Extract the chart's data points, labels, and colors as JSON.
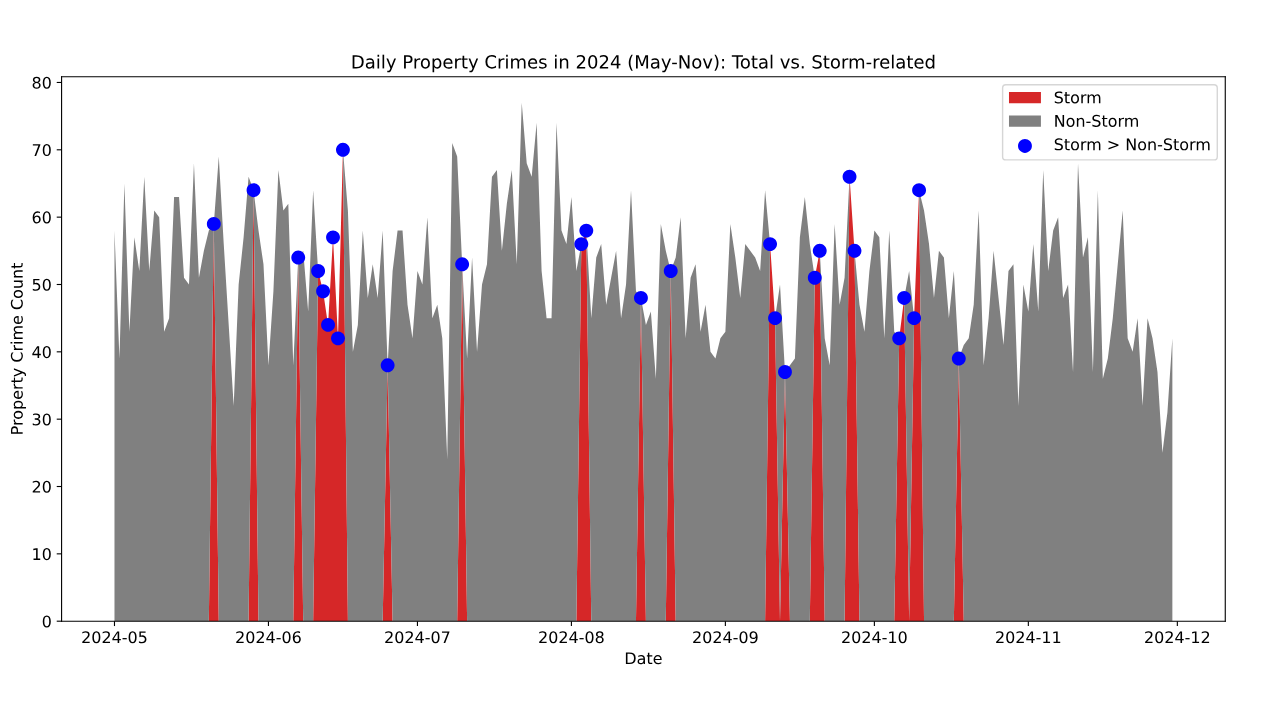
{
  "chart_data": {
    "type": "area",
    "title": "Daily Property Crimes in 2024 (May-Nov): Total vs. Storm-related",
    "xlabel": "Date",
    "ylabel": "Property Crime Count",
    "stacked": true,
    "legend": "top right",
    "grid": false,
    "xlim": [
      "2024-04-20T08:24",
      "2024-12-10T15:36"
    ],
    "xticks": [
      {
        "value": "2024-05-01",
        "label": "2024-05"
      },
      {
        "value": "2024-06-01",
        "label": "2024-06"
      },
      {
        "value": "2024-07-01",
        "label": "2024-07"
      },
      {
        "value": "2024-08-01",
        "label": "2024-08"
      },
      {
        "value": "2024-09-01",
        "label": "2024-09"
      },
      {
        "value": "2024-10-01",
        "label": "2024-10"
      },
      {
        "value": "2024-11-01",
        "label": "2024-11"
      },
      {
        "value": "2024-12-01",
        "label": "2024-12"
      }
    ],
    "ylim": [
      0,
      80.85
    ],
    "yticks": [
      0,
      10,
      20,
      30,
      40,
      50,
      60,
      70,
      80
    ],
    "x": [
      "2024-05-01",
      "2024-05-02",
      "2024-05-03",
      "2024-05-04",
      "2024-05-05",
      "2024-05-06",
      "2024-05-07",
      "2024-05-08",
      "2024-05-09",
      "2024-05-10",
      "2024-05-11",
      "2024-05-12",
      "2024-05-13",
      "2024-05-14",
      "2024-05-15",
      "2024-05-16",
      "2024-05-17",
      "2024-05-18",
      "2024-05-19",
      "2024-05-20",
      "2024-05-21",
      "2024-05-22",
      "2024-05-23",
      "2024-05-24",
      "2024-05-25",
      "2024-05-26",
      "2024-05-27",
      "2024-05-28",
      "2024-05-29",
      "2024-05-30",
      "2024-05-31",
      "2024-06-01",
      "2024-06-02",
      "2024-06-03",
      "2024-06-04",
      "2024-06-05",
      "2024-06-06",
      "2024-06-07",
      "2024-06-08",
      "2024-06-09",
      "2024-06-10",
      "2024-06-11",
      "2024-06-12",
      "2024-06-13",
      "2024-06-14",
      "2024-06-15",
      "2024-06-16",
      "2024-06-17",
      "2024-06-18",
      "2024-06-19",
      "2024-06-20",
      "2024-06-21",
      "2024-06-22",
      "2024-06-23",
      "2024-06-24",
      "2024-06-25",
      "2024-06-26",
      "2024-06-27",
      "2024-06-28",
      "2024-06-29",
      "2024-06-30",
      "2024-07-01",
      "2024-07-02",
      "2024-07-03",
      "2024-07-04",
      "2024-07-05",
      "2024-07-06",
      "2024-07-07",
      "2024-07-08",
      "2024-07-09",
      "2024-07-10",
      "2024-07-11",
      "2024-07-12",
      "2024-07-13",
      "2024-07-14",
      "2024-07-15",
      "2024-07-16",
      "2024-07-17",
      "2024-07-18",
      "2024-07-19",
      "2024-07-20",
      "2024-07-21",
      "2024-07-22",
      "2024-07-23",
      "2024-07-24",
      "2024-07-25",
      "2024-07-26",
      "2024-07-27",
      "2024-07-28",
      "2024-07-29",
      "2024-07-30",
      "2024-07-31",
      "2024-08-01",
      "2024-08-02",
      "2024-08-03",
      "2024-08-04",
      "2024-08-05",
      "2024-08-06",
      "2024-08-07",
      "2024-08-08",
      "2024-08-09",
      "2024-08-10",
      "2024-08-11",
      "2024-08-12",
      "2024-08-13",
      "2024-08-14",
      "2024-08-15",
      "2024-08-16",
      "2024-08-17",
      "2024-08-18",
      "2024-08-19",
      "2024-08-20",
      "2024-08-21",
      "2024-08-22",
      "2024-08-23",
      "2024-08-24",
      "2024-08-25",
      "2024-08-26",
      "2024-08-27",
      "2024-08-28",
      "2024-08-29",
      "2024-08-30",
      "2024-08-31",
      "2024-09-01",
      "2024-09-02",
      "2024-09-03",
      "2024-09-04",
      "2024-09-05",
      "2024-09-06",
      "2024-09-07",
      "2024-09-08",
      "2024-09-09",
      "2024-09-10",
      "2024-09-11",
      "2024-09-12",
      "2024-09-13",
      "2024-09-14",
      "2024-09-15",
      "2024-09-16",
      "2024-09-17",
      "2024-09-18",
      "2024-09-19",
      "2024-09-20",
      "2024-09-21",
      "2024-09-22",
      "2024-09-23",
      "2024-09-24",
      "2024-09-25",
      "2024-09-26",
      "2024-09-27",
      "2024-09-28",
      "2024-09-29",
      "2024-09-30",
      "2024-10-01",
      "2024-10-02",
      "2024-10-03",
      "2024-10-04",
      "2024-10-05",
      "2024-10-06",
      "2024-10-07",
      "2024-10-08",
      "2024-10-09",
      "2024-10-10",
      "2024-10-11",
      "2024-10-12",
      "2024-10-13",
      "2024-10-14",
      "2024-10-15",
      "2024-10-16",
      "2024-10-17",
      "2024-10-18",
      "2024-10-19",
      "2024-10-20",
      "2024-10-21",
      "2024-10-22",
      "2024-10-23",
      "2024-10-24",
      "2024-10-25",
      "2024-10-26",
      "2024-10-27",
      "2024-10-28",
      "2024-10-29",
      "2024-10-30",
      "2024-10-31",
      "2024-11-01",
      "2024-11-02",
      "2024-11-03",
      "2024-11-04",
      "2024-11-05",
      "2024-11-06",
      "2024-11-07",
      "2024-11-08",
      "2024-11-09",
      "2024-11-10",
      "2024-11-11",
      "2024-11-12",
      "2024-11-13",
      "2024-11-14",
      "2024-11-15",
      "2024-11-16",
      "2024-11-17",
      "2024-11-18",
      "2024-11-19",
      "2024-11-20",
      "2024-11-21",
      "2024-11-22",
      "2024-11-23",
      "2024-11-24",
      "2024-11-25",
      "2024-11-26",
      "2024-11-27",
      "2024-11-28",
      "2024-11-29",
      "2024-11-30"
    ],
    "series": [
      {
        "name": "Storm",
        "color": "#d62728",
        "values": [
          0,
          0,
          0,
          0,
          0,
          0,
          0,
          0,
          0,
          0,
          0,
          0,
          0,
          0,
          0,
          0,
          0,
          0,
          0,
          0,
          59,
          0,
          0,
          0,
          0,
          0,
          0,
          0,
          64,
          0,
          0,
          0,
          0,
          0,
          0,
          0,
          0,
          54,
          0,
          0,
          0,
          52,
          49,
          44,
          57,
          42,
          70,
          0,
          0,
          0,
          0,
          0,
          0,
          0,
          0,
          38,
          0,
          0,
          0,
          0,
          0,
          0,
          0,
          0,
          0,
          0,
          0,
          0,
          0,
          0,
          53,
          0,
          0,
          0,
          0,
          0,
          0,
          0,
          0,
          0,
          0,
          0,
          0,
          0,
          0,
          0,
          0,
          0,
          0,
          0,
          0,
          0,
          0,
          0,
          56,
          58,
          0,
          0,
          0,
          0,
          0,
          0,
          0,
          0,
          0,
          0,
          48,
          0,
          0,
          0,
          0,
          0,
          52,
          0,
          0,
          0,
          0,
          0,
          0,
          0,
          0,
          0,
          0,
          0,
          0,
          0,
          0,
          0,
          0,
          0,
          0,
          0,
          56,
          45,
          0,
          37,
          0,
          0,
          0,
          0,
          0,
          51,
          55,
          0,
          0,
          0,
          0,
          0,
          66,
          55,
          0,
          0,
          0,
          0,
          0,
          0,
          0,
          0,
          42,
          48,
          0,
          45,
          64,
          0,
          0,
          0,
          0,
          0,
          0,
          0,
          39,
          0,
          0,
          0,
          0,
          0,
          0,
          0,
          0,
          0,
          0,
          0,
          0,
          0,
          0,
          0,
          0,
          0,
          0,
          0,
          0,
          0,
          0,
          0,
          0,
          0,
          0,
          0,
          0,
          0,
          0,
          0,
          0,
          0,
          0,
          0,
          0,
          0,
          0,
          0,
          0,
          0,
          0,
          0
        ]
      },
      {
        "name": "Non-Storm",
        "color": "#808080",
        "values": [
          58,
          39,
          65,
          43,
          57,
          52,
          66,
          52,
          61,
          60,
          43,
          45,
          63,
          63,
          51,
          50,
          68,
          51,
          55,
          58,
          0,
          69,
          56,
          44,
          32,
          50,
          57,
          66,
          0,
          58,
          53,
          38,
          49,
          67,
          61,
          62,
          38,
          0,
          55,
          46,
          64,
          0,
          0,
          0,
          0,
          0,
          0,
          61,
          40,
          44,
          58,
          48,
          53,
          48,
          58,
          0,
          52,
          58,
          58,
          47,
          42,
          52,
          50,
          60,
          45,
          47,
          42,
          24,
          71,
          69,
          0,
          39,
          54,
          40,
          50,
          53,
          66,
          67,
          55,
          62,
          67,
          53,
          77,
          68,
          66,
          74,
          52,
          45,
          45,
          74,
          58,
          56,
          63,
          52,
          0,
          0,
          45,
          54,
          56,
          47,
          51,
          55,
          45,
          50,
          64,
          49,
          0,
          44,
          46,
          36,
          59,
          55,
          0,
          54,
          60,
          42,
          51,
          53,
          43,
          47,
          40,
          39,
          42,
          43,
          59,
          54,
          48,
          56,
          55,
          54,
          52,
          64,
          0,
          0,
          50,
          0,
          38,
          39,
          57,
          63,
          56,
          0,
          0,
          42,
          38,
          59,
          47,
          51,
          0,
          0,
          47,
          43,
          52,
          58,
          57,
          42,
          58,
          43,
          0,
          0,
          52,
          0,
          0,
          61,
          56,
          48,
          55,
          54,
          45,
          52,
          0,
          41,
          42,
          47,
          61,
          38,
          45,
          55,
          48,
          41,
          52,
          53,
          32,
          50,
          46,
          56,
          46,
          67,
          52,
          58,
          60,
          48,
          50,
          37,
          68,
          54,
          57,
          37,
          64,
          36,
          39,
          45,
          53,
          61,
          42,
          40,
          45,
          32,
          45,
          42,
          37,
          25,
          31,
          42
        ]
      },
      {
        "name": "Storm > Non-Storm",
        "type": "scatter",
        "color": "#0000ff",
        "marker": "circle",
        "x": [
          "2024-05-21",
          "2024-05-29",
          "2024-06-07",
          "2024-06-11",
          "2024-06-12",
          "2024-06-13",
          "2024-06-14",
          "2024-06-15",
          "2024-06-16",
          "2024-06-25",
          "2024-07-10",
          "2024-08-03",
          "2024-08-04",
          "2024-08-15",
          "2024-08-21",
          "2024-09-10",
          "2024-09-11",
          "2024-09-13",
          "2024-09-19",
          "2024-09-20",
          "2024-09-26",
          "2024-09-27",
          "2024-10-06",
          "2024-10-07",
          "2024-10-09",
          "2024-10-10",
          "2024-10-18"
        ],
        "values": [
          59,
          64,
          54,
          52,
          49,
          44,
          57,
          42,
          70,
          38,
          53,
          56,
          58,
          48,
          52,
          56,
          45,
          37,
          51,
          55,
          66,
          55,
          42,
          48,
          45,
          64,
          39
        ]
      }
    ]
  }
}
